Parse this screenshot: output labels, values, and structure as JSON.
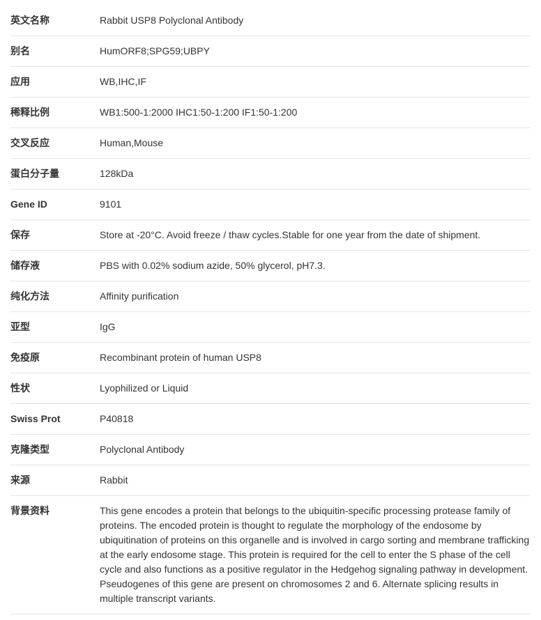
{
  "specs": {
    "rows": [
      {
        "label": "英文名称",
        "value": "Rabbit USP8 Polyclonal Antibody"
      },
      {
        "label": "别名",
        "value": "HumORF8;SPG59;UBPY"
      },
      {
        "label": "应用",
        "value": "WB,IHC,IF"
      },
      {
        "label": "稀释比例",
        "value": "WB1:500-1:2000 IHC1:50-1:200 IF1:50-1:200"
      },
      {
        "label": "交叉反应",
        "value": "Human,Mouse"
      },
      {
        "label": "蛋白分子量",
        "value": "128kDa"
      },
      {
        "label": "Gene ID",
        "value": "9101"
      },
      {
        "label": "保存",
        "value": "Store at -20°C. Avoid freeze / thaw cycles.Stable for one year from the date of shipment."
      },
      {
        "label": "储存液",
        "value": "PBS with 0.02% sodium azide, 50% glycerol, pH7.3."
      },
      {
        "label": "纯化方法",
        "value": "Affinity purification"
      },
      {
        "label": "亚型",
        "value": "IgG"
      },
      {
        "label": "免疫原",
        "value": "Recombinant protein of human USP8"
      },
      {
        "label": "性状",
        "value": "Lyophilized or Liquid"
      },
      {
        "label": "Swiss Prot",
        "value": "P40818"
      },
      {
        "label": "克隆类型",
        "value": "Polyclonal Antibody"
      },
      {
        "label": "来源",
        "value": "Rabbit"
      },
      {
        "label": "背景资料",
        "value": "This gene encodes a protein that belongs to the ubiquitin-specific processing protease family of proteins. The encoded protein is thought to regulate the morphology of the endosome by ubiquitination of proteins on this organelle and is involved in cargo sorting and membrane trafficking at the early endosome stage. This protein is required for the cell to enter the S phase of the cell cycle and also functions as a positive regulator in the Hedgehog signaling pathway in development. Pseudogenes of this gene are present on chromosomes 2 and 6. Alternate splicing results in multiple transcript variants."
      }
    ]
  },
  "styling": {
    "font_family": "Microsoft YaHei, Arial, sans-serif",
    "font_size": 14,
    "text_color": "#333333",
    "background_color": "#ffffff",
    "border_color": "#e5e5e5",
    "label_column_width": 128,
    "row_padding_vertical": 11,
    "line_height": 1.5,
    "label_font_weight": "bold"
  }
}
